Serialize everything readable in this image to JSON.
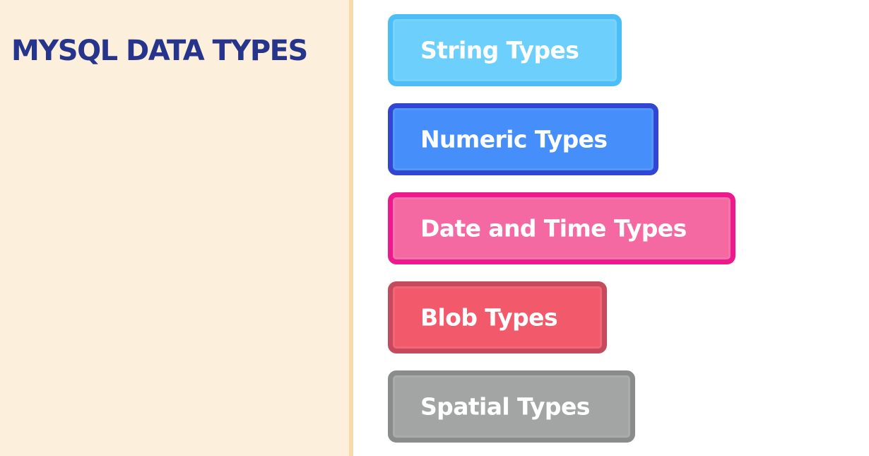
{
  "title": "MYSQL DATA TYPES",
  "colors": {
    "title": "#27348b",
    "left_background": "#fcefdc",
    "divider": "#f8d9a8"
  },
  "types": [
    {
      "label": "String Types",
      "fill": "#6ccffc",
      "border": "#4cbef7"
    },
    {
      "label": "Numeric Types",
      "fill": "#468ffa",
      "border": "#3345d3"
    },
    {
      "label": "Date and Time Types",
      "fill": "#f569a3",
      "border": "#ec1a8c"
    },
    {
      "label": "Blob Types",
      "fill": "#f25a6c",
      "border": "#c54a5c"
    },
    {
      "label": "Spatial Types",
      "fill": "#a3a5a4",
      "border": "#8a8b8b"
    }
  ]
}
